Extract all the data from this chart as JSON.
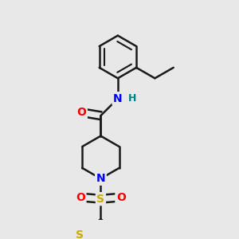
{
  "background_color": "#e8e8e8",
  "atom_colors": {
    "C": "#000000",
    "N": "#0000ff",
    "O": "#ff0000",
    "S": "#ccaa00",
    "H": "#008080"
  },
  "bond_color": "#1a1a1a",
  "bond_width": 1.8,
  "font_size_atom": 8,
  "fig_width": 3.0,
  "fig_height": 3.0,
  "dpi": 100
}
